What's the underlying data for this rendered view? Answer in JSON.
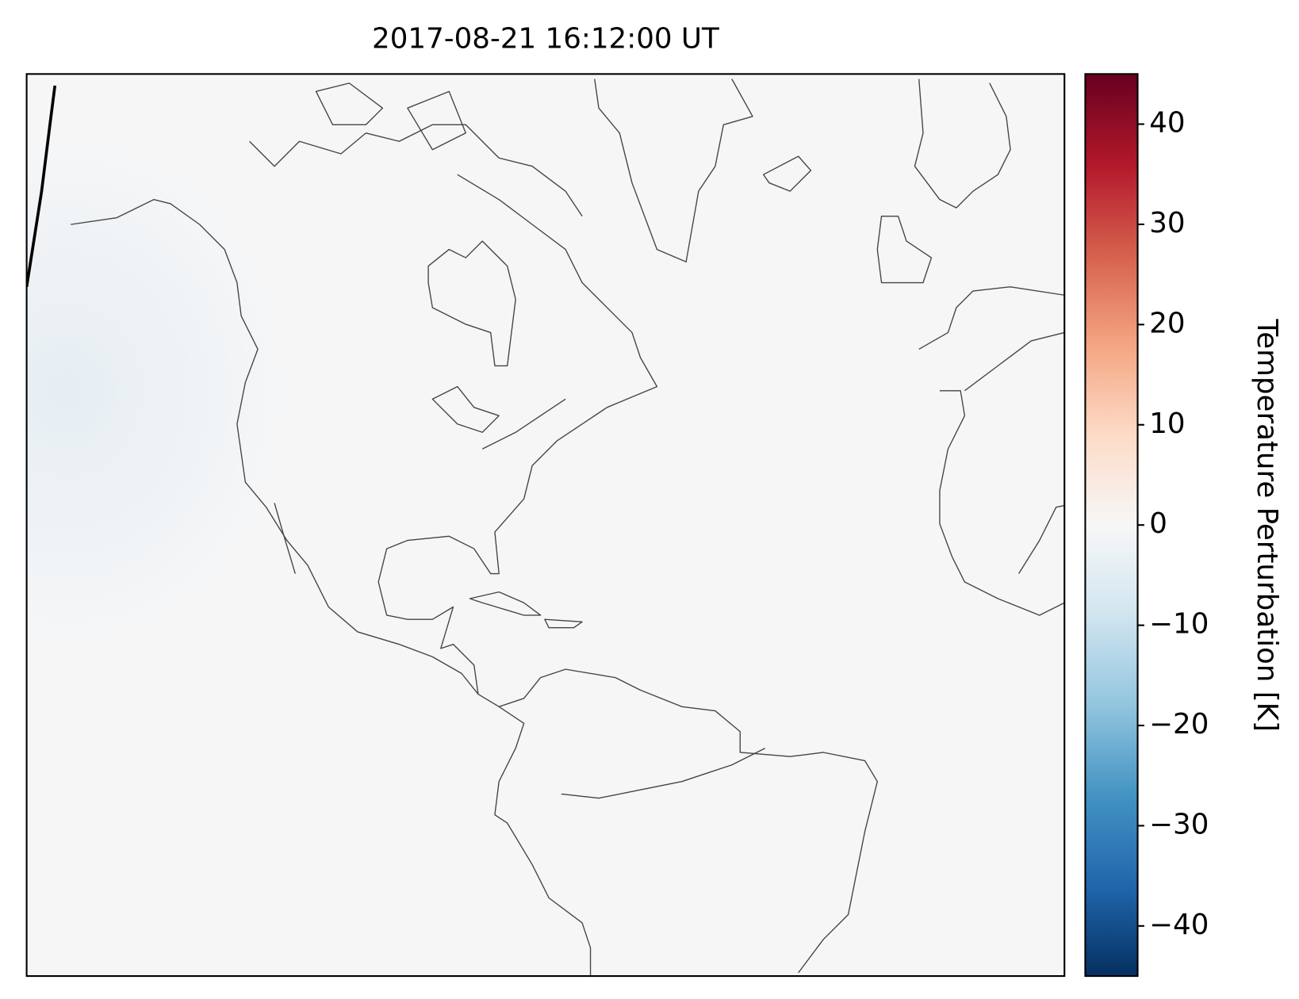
{
  "title": "2017-08-21 16:12:00 UT",
  "colorbar": {
    "label": "Temperature Perturbation [K]",
    "lim": [
      -45,
      45
    ],
    "ticks": [
      {
        "value": -40,
        "label": "−40"
      },
      {
        "value": -30,
        "label": "−30"
      },
      {
        "value": -20,
        "label": "−20"
      },
      {
        "value": -10,
        "label": "−10"
      },
      0,
      10,
      20,
      30,
      40
    ],
    "colors": [
      "#053061",
      "#2166ac",
      "#4393c3",
      "#92c5de",
      "#d1e5f0",
      "#f7f7f7",
      "#fddbc7",
      "#f4a582",
      "#d6604d",
      "#b2182b",
      "#67001f"
    ]
  }
}
